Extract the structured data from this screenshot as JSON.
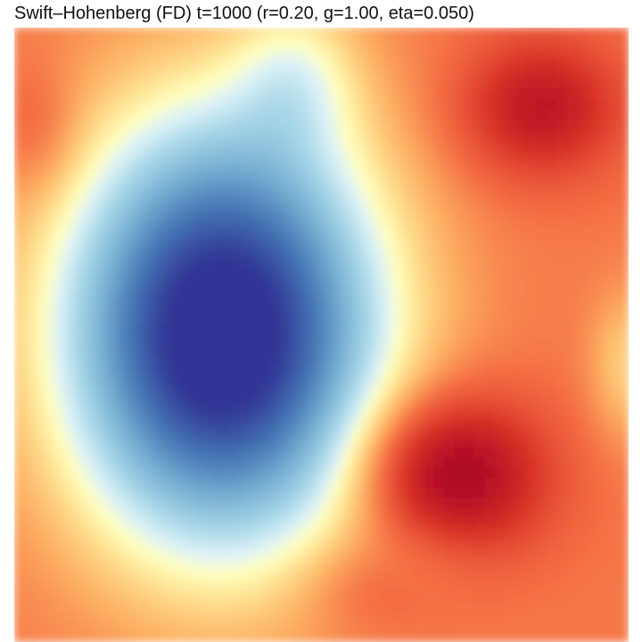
{
  "chart_data": {
    "type": "heatmap",
    "title": "Swift–Hohenberg (FD) t=1000 (r=0.20, g=1.00, eta=0.050)",
    "xlabel": "",
    "ylabel": "",
    "colormap": "RdYlBu_r",
    "colors": {
      "low": "#313695",
      "mid": "#ffffbf",
      "high": "#a50026"
    },
    "features": [
      {
        "kind": "minimum",
        "x": 0.34,
        "y": 0.5,
        "sx": 0.17,
        "sy": 0.23,
        "value": -1.0
      },
      {
        "kind": "maximum",
        "x": 0.73,
        "y": 0.73,
        "sx": 0.1,
        "sy": 0.09,
        "value": 0.95
      },
      {
        "kind": "maximum",
        "x": 0.86,
        "y": 0.13,
        "sx": 0.09,
        "sy": 0.08,
        "value": 0.85
      },
      {
        "kind": "maximum",
        "x": 0.62,
        "y": 0.93,
        "sx": 0.09,
        "sy": 0.06,
        "value": 0.45
      },
      {
        "kind": "maximum",
        "x": 0.02,
        "y": 0.14,
        "sx": 0.05,
        "sy": 0.08,
        "value": 0.45
      }
    ],
    "background_value": 0.42,
    "grid": false,
    "axes_visible": false
  }
}
